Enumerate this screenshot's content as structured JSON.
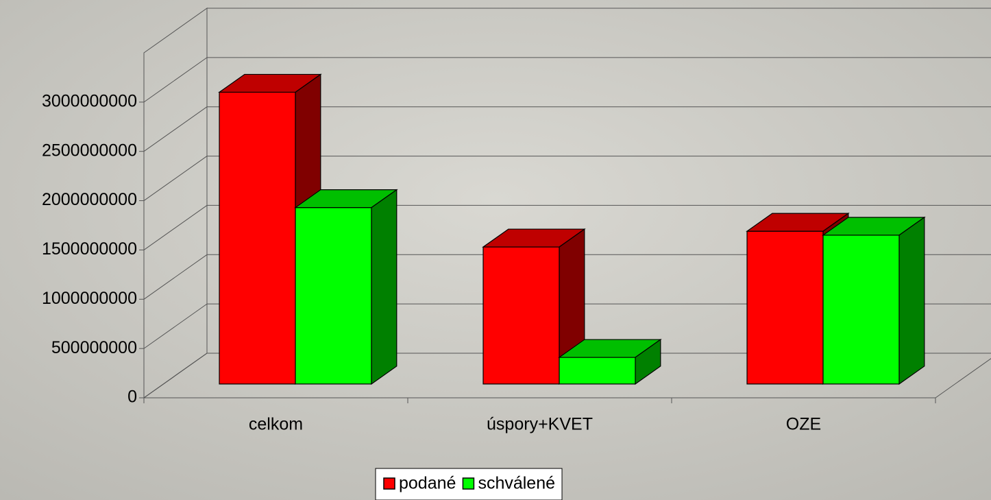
{
  "chart_data": {
    "type": "bar3d",
    "categories": [
      "celkom",
      "úspory+KVET",
      "OZE"
    ],
    "series": [
      {
        "name": "podané",
        "color": "#ff0000",
        "values": [
          2960000000,
          1390000000,
          1550000000
        ]
      },
      {
        "name": "schválené",
        "color": "#00ff00",
        "values": [
          1790000000,
          270000000,
          1510000000
        ]
      }
    ],
    "ylim": [
      0,
      3500000000
    ],
    "yticks": [
      0,
      500000000,
      1000000000,
      1500000000,
      2000000000,
      2500000000,
      3000000000
    ],
    "grid": true,
    "legend": "bottom"
  }
}
